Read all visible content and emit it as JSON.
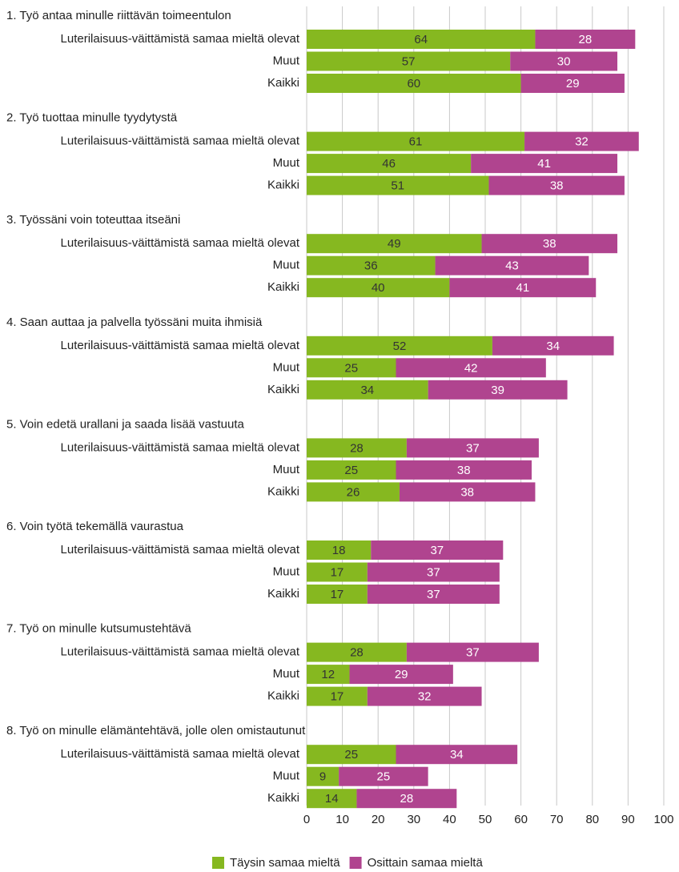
{
  "chart_data": {
    "type": "bar",
    "orientation": "horizontal",
    "stacked": true,
    "grid": true,
    "legend": "bottom",
    "groups": [
      {
        "title": "1. Työ antaa minulle riittävän toimeentulon",
        "categories": [
          "Luterilaisuus-väittämistä samaa mieltä olevat",
          "Muut",
          "Kaikki"
        ]
      },
      {
        "title": "2. Työ tuottaa minulle tyydytystä",
        "categories": [
          "Luterilaisuus-väittämistä samaa mieltä olevat",
          "Muut",
          "Kaikki"
        ]
      },
      {
        "title": "3. Työssäni voin toteuttaa itseäni",
        "categories": [
          "Luterilaisuus-väittämistä samaa mieltä olevat",
          "Muut",
          "Kaikki"
        ]
      },
      {
        "title": "4. Saan auttaa ja palvella työssäni muita ihmisiä",
        "categories": [
          "Luterilaisuus-väittämistä samaa mieltä olevat",
          "Muut",
          "Kaikki"
        ]
      },
      {
        "title": "5. Voin edetä urallani ja saada lisää vastuuta",
        "categories": [
          "Luterilaisuus-väittämistä samaa mieltä olevat",
          "Muut",
          "Kaikki"
        ]
      },
      {
        "title": "6. Voin työtä tekemällä vaurastua",
        "categories": [
          "Luterilaisuus-väittämistä samaa mieltä olevat",
          "Muut",
          "Kaikki"
        ]
      },
      {
        "title": "7. Työ on minulle kutsumustehtävä",
        "categories": [
          "Luterilaisuus-väittämistä samaa mieltä olevat",
          "Muut",
          "Kaikki"
        ]
      },
      {
        "title": "8. Työ on minulle elämäntehtävä, jolle olen omistautunut",
        "categories": [
          "Luterilaisuus-väittämistä samaa mieltä olevat",
          "Muut",
          "Kaikki"
        ]
      }
    ],
    "series": [
      {
        "name": "Täysin samaa mieltä",
        "color": "#86b820",
        "label_color": "#333333",
        "values": [
          64,
          57,
          60,
          61,
          46,
          51,
          49,
          36,
          40,
          52,
          25,
          34,
          28,
          25,
          26,
          18,
          17,
          17,
          28,
          12,
          17,
          25,
          9,
          14
        ]
      },
      {
        "name": "Osittain samaa mieltä",
        "color": "#b0448f",
        "label_color": "#ffffff",
        "values": [
          28,
          30,
          29,
          32,
          41,
          38,
          38,
          43,
          41,
          34,
          42,
          39,
          37,
          38,
          38,
          37,
          37,
          37,
          37,
          29,
          32,
          34,
          25,
          28
        ]
      }
    ],
    "xlim": [
      0,
      100
    ],
    "xticks": [
      0,
      10,
      20,
      30,
      40,
      50,
      60,
      70,
      80,
      90,
      100
    ]
  }
}
